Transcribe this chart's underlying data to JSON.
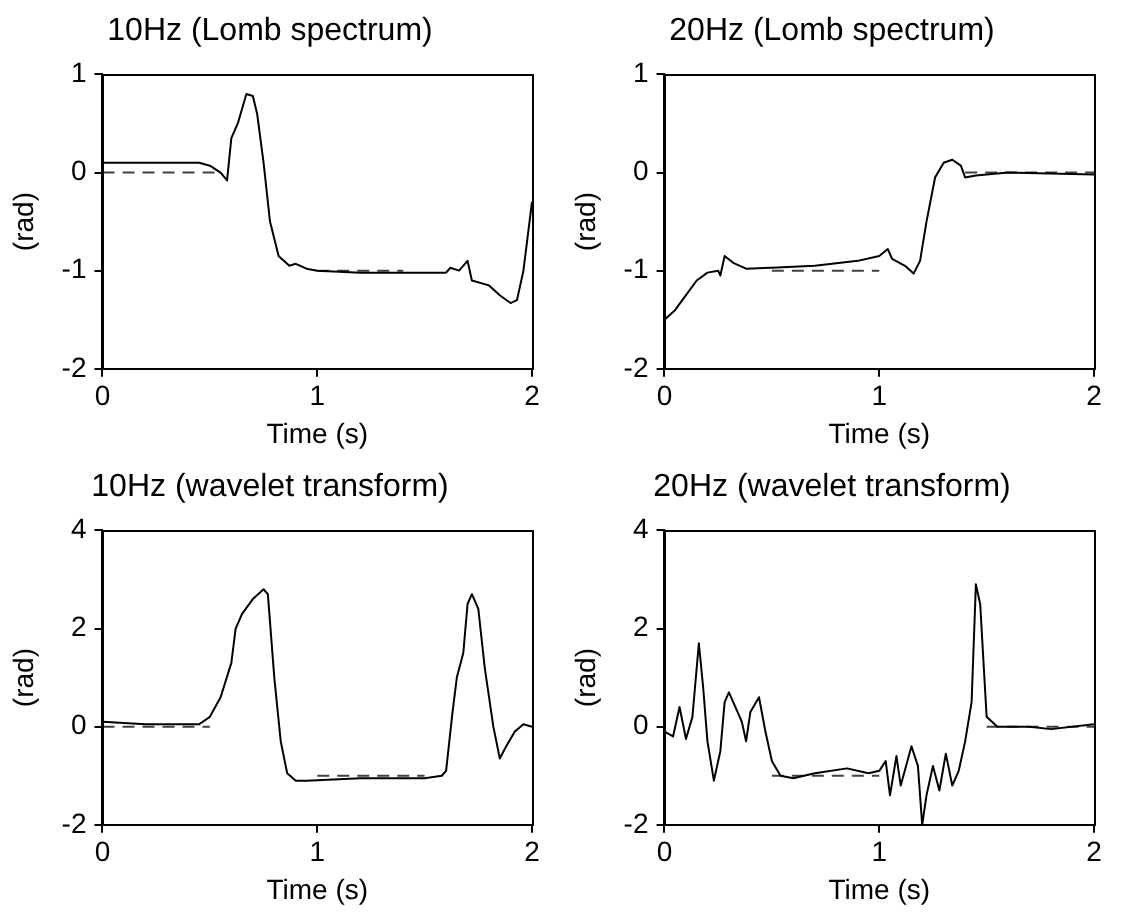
{
  "chart_data": [
    {
      "type": "line",
      "title": "10Hz (Lomb spectrum)",
      "xlabel": "Time (s)",
      "ylabel": "(rad)",
      "xlim": [
        0,
        2
      ],
      "xticks": [
        0,
        1,
        2
      ],
      "ylim": [
        -2,
        1
      ],
      "yticks": [
        -2,
        -1,
        0,
        1
      ],
      "grid": false,
      "legend": false,
      "marker": "none",
      "series": [
        {
          "color": "#000000",
          "line_style": "solid",
          "x": [
            0,
            0.45,
            0.5,
            0.55,
            0.58,
            0.6,
            0.63,
            0.67,
            0.7,
            0.72,
            0.75,
            0.78,
            0.82,
            0.87,
            0.9,
            0.95,
            1.0,
            1.2,
            1.4,
            1.6,
            1.62,
            1.66,
            1.7,
            1.72,
            1.8,
            1.85,
            1.9,
            1.93,
            1.96,
            2.0
          ],
          "values": [
            0.1,
            0.1,
            0.07,
            0.0,
            -0.08,
            0.35,
            0.5,
            0.8,
            0.78,
            0.6,
            0.1,
            -0.5,
            -0.85,
            -0.95,
            -0.93,
            -0.98,
            -1.0,
            -1.02,
            -1.02,
            -1.02,
            -0.97,
            -1.0,
            -0.9,
            -1.1,
            -1.15,
            -1.25,
            -1.33,
            -1.3,
            -1.0,
            -0.3
          ]
        },
        {
          "color": "#404040",
          "line_style": "dashed",
          "x": [
            0,
            0.55
          ],
          "values": [
            0,
            0
          ]
        },
        {
          "color": "#404040",
          "line_style": "dashed",
          "x": [
            1.0,
            1.4
          ],
          "values": [
            -1,
            -1
          ]
        }
      ]
    },
    {
      "type": "line",
      "title": "20Hz (Lomb spectrum)",
      "xlabel": "Time (s)",
      "ylabel": "(rad)",
      "xlim": [
        0,
        2
      ],
      "xticks": [
        0,
        1,
        2
      ],
      "ylim": [
        -2,
        1
      ],
      "yticks": [
        -2,
        -1,
        0,
        1
      ],
      "grid": false,
      "legend": false,
      "marker": "none",
      "series": [
        {
          "color": "#000000",
          "line_style": "solid",
          "x": [
            0,
            0.05,
            0.1,
            0.15,
            0.2,
            0.25,
            0.26,
            0.28,
            0.32,
            0.38,
            0.5,
            0.7,
            0.9,
            1.0,
            1.04,
            1.06,
            1.12,
            1.16,
            1.19,
            1.22,
            1.26,
            1.3,
            1.34,
            1.38,
            1.4,
            1.45,
            1.6,
            2.0
          ],
          "values": [
            -1.5,
            -1.4,
            -1.25,
            -1.1,
            -1.02,
            -1.0,
            -1.05,
            -0.85,
            -0.92,
            -0.98,
            -0.97,
            -0.95,
            -0.9,
            -0.85,
            -0.78,
            -0.88,
            -0.95,
            -1.03,
            -0.9,
            -0.5,
            -0.05,
            0.1,
            0.13,
            0.07,
            -0.05,
            -0.03,
            0.0,
            -0.02
          ]
        },
        {
          "color": "#404040",
          "line_style": "dashed",
          "x": [
            0.5,
            1.0
          ],
          "values": [
            -1,
            -1
          ]
        },
        {
          "color": "#404040",
          "line_style": "dashed",
          "x": [
            1.4,
            2.0
          ],
          "values": [
            0,
            0
          ]
        }
      ]
    },
    {
      "type": "line",
      "title": "10Hz (wavelet transform)",
      "xlabel": "Time (s)",
      "ylabel": "(rad)",
      "xlim": [
        0,
        2
      ],
      "xticks": [
        0,
        1,
        2
      ],
      "ylim": [
        -2,
        4
      ],
      "yticks": [
        -2,
        0,
        2,
        4
      ],
      "grid": false,
      "legend": false,
      "marker": "none",
      "series": [
        {
          "color": "#000000",
          "line_style": "solid",
          "x": [
            0,
            0.2,
            0.45,
            0.5,
            0.55,
            0.6,
            0.62,
            0.65,
            0.7,
            0.75,
            0.77,
            0.8,
            0.83,
            0.86,
            0.9,
            0.95,
            1.2,
            1.5,
            1.58,
            1.6,
            1.63,
            1.65,
            1.68,
            1.7,
            1.72,
            1.75,
            1.78,
            1.82,
            1.85,
            1.88,
            1.92,
            1.96,
            2.0
          ],
          "values": [
            0.1,
            0.05,
            0.05,
            0.2,
            0.6,
            1.3,
            2.0,
            2.3,
            2.6,
            2.8,
            2.7,
            1.0,
            -0.3,
            -0.95,
            -1.1,
            -1.1,
            -1.05,
            -1.05,
            -1.0,
            -0.9,
            0.3,
            1.0,
            1.5,
            2.5,
            2.7,
            2.4,
            1.2,
            0.0,
            -0.65,
            -0.4,
            -0.1,
            0.05,
            0.0
          ]
        },
        {
          "color": "#404040",
          "line_style": "dashed",
          "x": [
            0,
            0.5
          ],
          "values": [
            0,
            0
          ]
        },
        {
          "color": "#404040",
          "line_style": "dashed",
          "x": [
            1.0,
            1.5
          ],
          "values": [
            -1,
            -1
          ]
        }
      ]
    },
    {
      "type": "line",
      "title": "20Hz (wavelet transform)",
      "xlabel": "Time (s)",
      "ylabel": "(rad)",
      "xlim": [
        0,
        2
      ],
      "xticks": [
        0,
        1,
        2
      ],
      "ylim": [
        -2,
        4
      ],
      "yticks": [
        -2,
        0,
        2,
        4
      ],
      "grid": false,
      "legend": false,
      "marker": "none",
      "series": [
        {
          "color": "#000000",
          "line_style": "solid",
          "x": [
            0,
            0.04,
            0.07,
            0.1,
            0.13,
            0.16,
            0.18,
            0.2,
            0.23,
            0.26,
            0.28,
            0.3,
            0.34,
            0.36,
            0.38,
            0.4,
            0.44,
            0.47,
            0.5,
            0.54,
            0.6,
            0.7,
            0.85,
            0.95,
            1.0,
            1.03,
            1.05,
            1.08,
            1.1,
            1.15,
            1.18,
            1.2,
            1.22,
            1.25,
            1.28,
            1.31,
            1.34,
            1.37,
            1.4,
            1.43,
            1.45,
            1.47,
            1.5,
            1.55,
            1.7,
            1.8,
            2.0
          ],
          "values": [
            -0.1,
            -0.2,
            0.4,
            -0.25,
            0.2,
            1.7,
            0.8,
            -0.3,
            -1.1,
            -0.5,
            0.5,
            0.7,
            0.3,
            0.1,
            -0.3,
            0.3,
            0.6,
            -0.1,
            -0.7,
            -1.0,
            -1.05,
            -0.95,
            -0.85,
            -0.95,
            -0.9,
            -0.7,
            -1.4,
            -0.6,
            -1.2,
            -0.4,
            -0.8,
            -2.0,
            -1.4,
            -0.8,
            -1.3,
            -0.55,
            -1.2,
            -0.9,
            -0.3,
            0.5,
            2.9,
            2.5,
            0.2,
            0.0,
            0.0,
            -0.05,
            0.05
          ]
        },
        {
          "color": "#404040",
          "line_style": "dashed",
          "x": [
            0.5,
            1.0
          ],
          "values": [
            -1,
            -1
          ]
        },
        {
          "color": "#404040",
          "line_style": "dashed",
          "x": [
            1.5,
            2.0
          ],
          "values": [
            0,
            0
          ]
        }
      ]
    }
  ]
}
